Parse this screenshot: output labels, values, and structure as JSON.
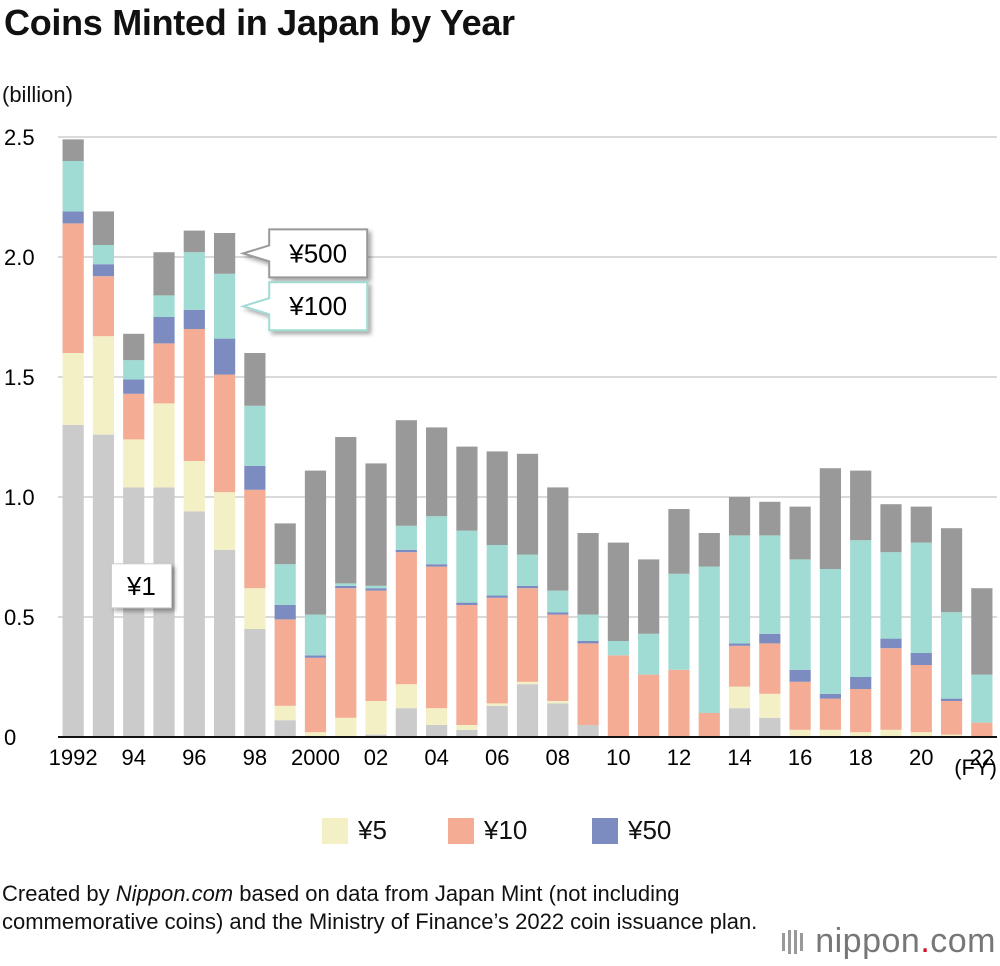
{
  "title": "Coins Minted in Japan by Year",
  "unit_label": "(billion)",
  "x_unit_label": "(FY)",
  "credit": {
    "prefix": "Created by ",
    "source_name": "Nippon.com",
    "suffix": " based on data from Japan Mint (not including commemorative coins) and the Ministry of Finance’s 2022 coin issuance plan."
  },
  "logo": {
    "text_main": "nippon",
    "text_dot": ".",
    "text_end": "com"
  },
  "chart_data": {
    "type": "bar",
    "stacked": true,
    "ylim": [
      0,
      2.5
    ],
    "yticks": [
      0,
      0.5,
      1.0,
      1.5,
      2.0,
      2.5
    ],
    "ytick_labels": [
      "0",
      "0.5",
      "1.0",
      "1.5",
      "2.0",
      "2.5"
    ],
    "categories": [
      "1992",
      "1993",
      "1994",
      "1995",
      "1996",
      "1997",
      "1998",
      "1999",
      "2000",
      "2001",
      "2002",
      "2003",
      "2004",
      "2005",
      "2006",
      "2007",
      "2008",
      "2009",
      "2010",
      "2011",
      "2012",
      "2013",
      "2014",
      "2015",
      "2016",
      "2017",
      "2018",
      "2019",
      "2020",
      "2021",
      "2022"
    ],
    "xtick_labels": [
      "1992",
      "",
      "94",
      "",
      "96",
      "",
      "98",
      "",
      "2000",
      "",
      "02",
      "",
      "04",
      "",
      "06",
      "",
      "08",
      "",
      "10",
      "",
      "12",
      "",
      "14",
      "",
      "16",
      "",
      "18",
      "",
      "20",
      "",
      "22"
    ],
    "grid": "horizontal",
    "colors": {
      "y1": "#cbcbcb",
      "y5": "#f3f0c5",
      "y10": "#f4ac94",
      "y50": "#7d8cc0",
      "y100": "#a1dcd4",
      "y500": "#999999"
    },
    "series": [
      {
        "key": "y1",
        "name": "¥1",
        "values": [
          1.3,
          1.26,
          1.04,
          1.04,
          0.94,
          0.78,
          0.45,
          0.07,
          0.0,
          0.0,
          0.01,
          0.12,
          0.05,
          0.03,
          0.13,
          0.22,
          0.14,
          0.05,
          0.0,
          0.0,
          0.0,
          0.0,
          0.12,
          0.08,
          0.0,
          0.0,
          0.0,
          0.0,
          0.0,
          0.0,
          0.0
        ]
      },
      {
        "key": "y5",
        "name": "¥5",
        "values": [
          0.3,
          0.41,
          0.2,
          0.35,
          0.21,
          0.24,
          0.17,
          0.06,
          0.02,
          0.08,
          0.14,
          0.1,
          0.07,
          0.02,
          0.01,
          0.01,
          0.01,
          0.0,
          0.0,
          0.0,
          0.0,
          0.0,
          0.09,
          0.1,
          0.03,
          0.03,
          0.02,
          0.03,
          0.02,
          0.01,
          0.0
        ]
      },
      {
        "key": "y10",
        "name": "¥10",
        "values": [
          0.54,
          0.25,
          0.19,
          0.25,
          0.55,
          0.49,
          0.41,
          0.36,
          0.31,
          0.54,
          0.46,
          0.55,
          0.59,
          0.5,
          0.44,
          0.39,
          0.36,
          0.34,
          0.34,
          0.26,
          0.28,
          0.1,
          0.17,
          0.21,
          0.2,
          0.13,
          0.18,
          0.34,
          0.28,
          0.14,
          0.06
        ]
      },
      {
        "key": "y50",
        "name": "¥50",
        "values": [
          0.05,
          0.05,
          0.06,
          0.11,
          0.08,
          0.15,
          0.1,
          0.06,
          0.01,
          0.01,
          0.01,
          0.01,
          0.01,
          0.01,
          0.01,
          0.01,
          0.01,
          0.01,
          0.0,
          0.0,
          0.0,
          0.0,
          0.01,
          0.04,
          0.05,
          0.02,
          0.05,
          0.04,
          0.05,
          0.01,
          0.0
        ]
      },
      {
        "key": "y100",
        "name": "¥100",
        "values": [
          0.21,
          0.08,
          0.08,
          0.09,
          0.24,
          0.27,
          0.25,
          0.17,
          0.17,
          0.01,
          0.01,
          0.1,
          0.2,
          0.3,
          0.21,
          0.13,
          0.09,
          0.11,
          0.06,
          0.17,
          0.4,
          0.61,
          0.45,
          0.41,
          0.46,
          0.52,
          0.57,
          0.36,
          0.46,
          0.36,
          0.2
        ]
      },
      {
        "key": "y500",
        "name": "¥500",
        "values": [
          0.09,
          0.14,
          0.11,
          0.18,
          0.09,
          0.17,
          0.22,
          0.17,
          0.6,
          0.61,
          0.51,
          0.44,
          0.37,
          0.35,
          0.39,
          0.42,
          0.43,
          0.34,
          0.41,
          0.31,
          0.27,
          0.14,
          0.16,
          0.14,
          0.22,
          0.42,
          0.29,
          0.2,
          0.15,
          0.35,
          0.36
        ]
      }
    ],
    "legend": {
      "position": "bottom",
      "entries": [
        "¥5",
        "¥10",
        "¥50"
      ]
    },
    "annotations": [
      {
        "text": "¥500",
        "series": "y500",
        "category": "1997",
        "style": "gray-callout"
      },
      {
        "text": "¥100",
        "series": "y100",
        "category": "1997",
        "style": "teal-callout"
      },
      {
        "text": "¥1",
        "series": "y1",
        "category": "1993",
        "style": "plain-box"
      }
    ]
  }
}
